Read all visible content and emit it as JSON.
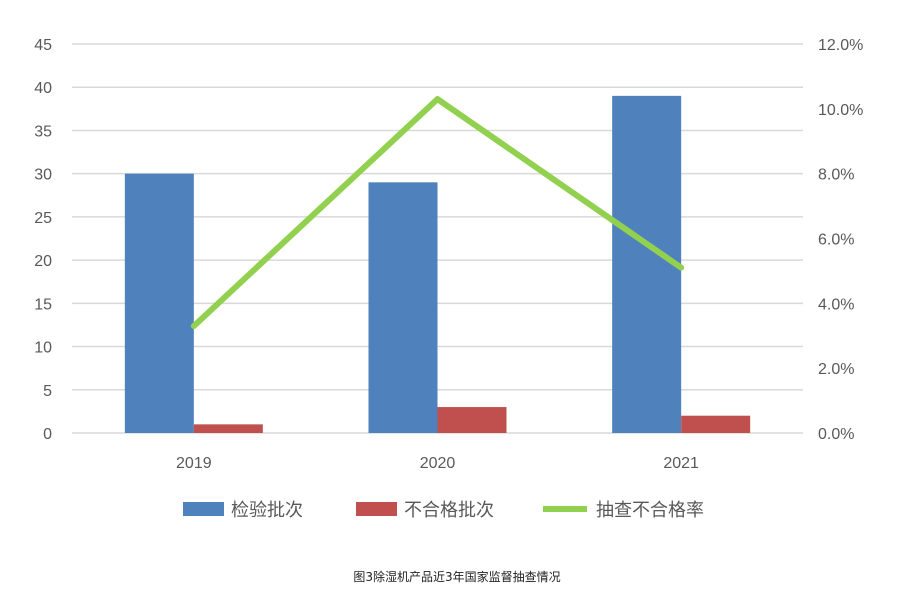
{
  "caption": "图3除湿机产品近3年国家监督抽查情况",
  "chart_data": {
    "type": "bar",
    "categories": [
      "2019",
      "2020",
      "2021"
    ],
    "series": [
      {
        "name": "检验批次",
        "type": "bar",
        "axis": "left",
        "color": "#4F81BD",
        "values": [
          30,
          29,
          39
        ]
      },
      {
        "name": "不合格批次",
        "type": "bar",
        "axis": "left",
        "color": "#C0504D",
        "values": [
          1,
          3,
          2
        ]
      },
      {
        "name": "抽查不合格率",
        "type": "line",
        "axis": "right",
        "color": "#92D050",
        "values": [
          0.033,
          0.103,
          0.051
        ]
      }
    ],
    "y_left": {
      "min": 0,
      "max": 45,
      "ticks": [
        "0",
        "5",
        "10",
        "15",
        "20",
        "25",
        "30",
        "35",
        "40",
        "45"
      ]
    },
    "y_right": {
      "min": 0,
      "max": 0.12,
      "ticks": [
        "0.0%",
        "2.0%",
        "4.0%",
        "6.0%",
        "8.0%",
        "10.0%",
        "12.0%"
      ]
    },
    "grid": true,
    "legend_position": "bottom"
  }
}
